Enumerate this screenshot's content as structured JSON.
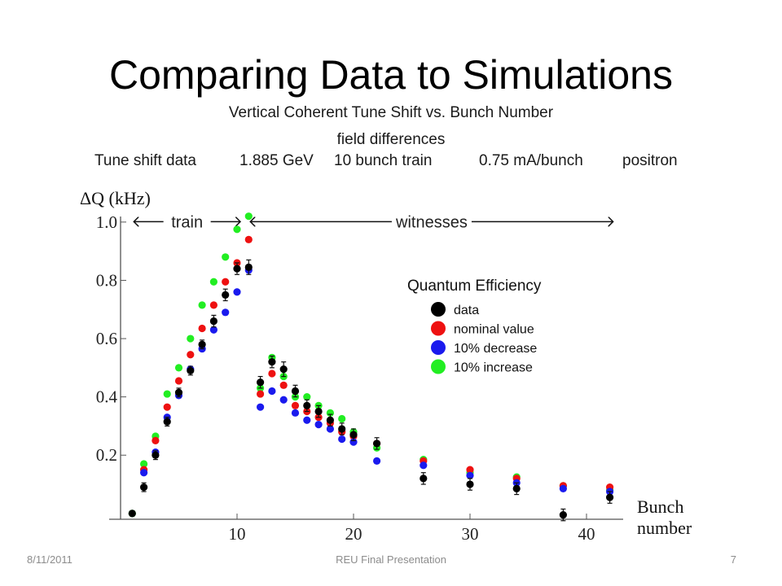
{
  "slide": {
    "title": "Comparing Data to Simulations",
    "footer_date": "8/11/2011",
    "footer_center": "REU Final Presentation",
    "page_number": "7"
  },
  "chart_data": {
    "type": "scatter",
    "title": "Vertical Coherent Tune Shift vs. Bunch Number",
    "subtitle": "field differences",
    "header_items": [
      "Tune shift data",
      "1.885 GeV",
      "10 bunch train",
      "0.75 mA/bunch",
      "positron"
    ],
    "ylabel": "ΔQ (kHz)",
    "xlabel": [
      "Bunch",
      "number"
    ],
    "xlim": [
      0,
      43
    ],
    "ylim": [
      -0.02,
      1.03
    ],
    "xticks": [
      10,
      20,
      30,
      40
    ],
    "yticks": [
      0.2,
      0.4,
      0.6,
      0.8,
      1.0
    ],
    "ytick_labels": [
      "0.2",
      "0.4",
      "0.6",
      "0.8",
      "1.0"
    ],
    "annotations": [
      {
        "text": "train",
        "x_from": 1,
        "x_to": 10,
        "y": 1.0
      },
      {
        "text": "witnesses",
        "x_from": 11,
        "x_to": 42,
        "y": 1.0
      }
    ],
    "legend": {
      "title": "Quantum Efficiency",
      "position": "center-right"
    },
    "series": [
      {
        "name": "data",
        "color": "#000000",
        "has_error_bars": true,
        "x": [
          1,
          2,
          3,
          4,
          5,
          6,
          7,
          8,
          9,
          10,
          11,
          12,
          13,
          14,
          15,
          16,
          17,
          18,
          19,
          20,
          22,
          26,
          30,
          34,
          38,
          42
        ],
        "y": [
          0.0,
          0.09,
          0.2,
          0.315,
          0.415,
          0.49,
          0.58,
          0.66,
          0.75,
          0.84,
          0.845,
          0.45,
          0.52,
          0.495,
          0.42,
          0.37,
          0.35,
          0.32,
          0.29,
          0.27,
          0.24,
          0.12,
          0.1,
          0.085,
          -0.005,
          0.055
        ],
        "err": [
          0.0,
          0.015,
          0.015,
          0.015,
          0.015,
          0.015,
          0.015,
          0.02,
          0.02,
          0.02,
          0.025,
          0.02,
          0.02,
          0.025,
          0.02,
          0.02,
          0.02,
          0.02,
          0.02,
          0.02,
          0.02,
          0.02,
          0.02,
          0.02,
          0.02,
          0.02
        ]
      },
      {
        "name": "nominal value",
        "color": "#ee1111",
        "x": [
          2,
          3,
          4,
          5,
          6,
          7,
          8,
          9,
          10,
          11,
          12,
          13,
          14,
          15,
          16,
          17,
          18,
          19,
          20,
          22,
          26,
          30,
          34,
          38,
          42
        ],
        "y": [
          0.15,
          0.25,
          0.365,
          0.455,
          0.545,
          0.635,
          0.715,
          0.795,
          0.86,
          0.94,
          0.41,
          0.48,
          0.44,
          0.37,
          0.35,
          0.33,
          0.31,
          0.28,
          0.265,
          0.24,
          0.18,
          0.15,
          0.12,
          0.095,
          0.09
        ]
      },
      {
        "name": "10% decrease",
        "color": "#1a1aee",
        "x": [
          2,
          3,
          4,
          5,
          6,
          7,
          8,
          9,
          10,
          11,
          12,
          13,
          14,
          15,
          16,
          17,
          18,
          19,
          20,
          22,
          26,
          30,
          34,
          38,
          42
        ],
        "y": [
          0.14,
          0.21,
          0.33,
          0.405,
          0.495,
          0.565,
          0.63,
          0.69,
          0.76,
          0.835,
          0.365,
          0.42,
          0.39,
          0.345,
          0.32,
          0.305,
          0.29,
          0.255,
          0.245,
          0.18,
          0.165,
          0.13,
          0.105,
          0.085,
          0.075
        ]
      },
      {
        "name": "10% increase",
        "color": "#22ee22",
        "x": [
          1,
          2,
          3,
          4,
          5,
          6,
          7,
          8,
          9,
          10,
          11,
          12,
          13,
          14,
          15,
          16,
          17,
          18,
          19,
          20,
          22,
          26,
          30,
          34,
          38,
          42
        ],
        "y": [
          0.0,
          0.17,
          0.265,
          0.41,
          0.5,
          0.6,
          0.715,
          0.795,
          0.88,
          0.975,
          1.02,
          0.43,
          0.535,
          0.47,
          0.4,
          0.4,
          0.37,
          0.345,
          0.325,
          0.28,
          0.225,
          0.185,
          0.14,
          0.125,
          0.095,
          0.08
        ]
      }
    ]
  }
}
